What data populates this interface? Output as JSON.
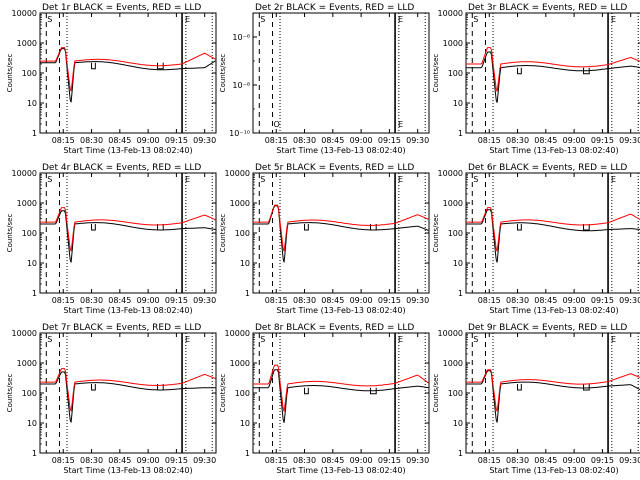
{
  "figure": {
    "common": {
      "xlabel": "Start Time (13-Feb-13 08:02:40)",
      "ylabel": "Counts/sec",
      "x_ticks": [
        "08:15",
        "08:30",
        "08:45",
        "09:00",
        "09:15",
        "09:30"
      ],
      "y_ticks_log": [
        "1",
        "10",
        "100",
        "1000",
        "10000"
      ],
      "y_ticks_tiny": [
        "10⁻¹⁰",
        "10⁻⁸",
        "10⁻⁶"
      ],
      "markers": {
        "s": "S",
        "e": "E",
        "o": "O"
      },
      "colors": {
        "events": "#000000",
        "lld": "#ff0000",
        "axes": "#000000"
      }
    }
  },
  "chart_data": [
    {
      "type": "line",
      "title": "Det 1r BLACK = Events, RED = LLD",
      "x": [
        "08:02:40",
        "08:15",
        "09:18",
        "09:30",
        "09:36"
      ],
      "ylim": [
        1,
        10000
      ],
      "scale": "log",
      "series": [
        {
          "name": "Events",
          "values": [
            220,
            650,
            140,
            150,
            260
          ]
        },
        {
          "name": "LLD",
          "values": [
            250,
            700,
            200,
            460,
            280
          ]
        }
      ]
    },
    {
      "type": "line",
      "title": "Det 2r BLACK = Events, RED = LLD",
      "ylim": [
        1e-10,
        1e-05
      ],
      "scale": "log",
      "series": []
    },
    {
      "type": "line",
      "title": "Det 3r BLACK = Events, RED = LLD",
      "x": [
        "08:02:40",
        "08:15",
        "09:18",
        "09:30",
        "09:36"
      ],
      "ylim": [
        1,
        10000
      ],
      "scale": "log",
      "series": [
        {
          "name": "Events",
          "values": [
            150,
            500,
            140,
            170,
            150
          ]
        },
        {
          "name": "LLD",
          "values": [
            200,
            700,
            190,
            330,
            230
          ]
        }
      ]
    },
    {
      "type": "line",
      "title": "Det 4r BLACK = Events, RED = LLD",
      "x": [
        "08:02:40",
        "08:15",
        "09:18",
        "09:30",
        "09:36"
      ],
      "ylim": [
        1,
        10000
      ],
      "scale": "log",
      "series": [
        {
          "name": "Events",
          "values": [
            200,
            550,
            140,
            150,
            130
          ]
        },
        {
          "name": "LLD",
          "values": [
            230,
            700,
            220,
            400,
            270
          ]
        }
      ]
    },
    {
      "type": "line",
      "title": "Det 5r BLACK = Events, RED = LLD",
      "x": [
        "08:02:40",
        "08:15",
        "09:18",
        "09:30",
        "09:36"
      ],
      "ylim": [
        1,
        10000
      ],
      "scale": "log",
      "series": [
        {
          "name": "Events",
          "values": [
            200,
            800,
            140,
            170,
            120
          ]
        },
        {
          "name": "LLD",
          "values": [
            230,
            850,
            210,
            410,
            280
          ]
        }
      ]
    },
    {
      "type": "line",
      "title": "Det 6r BLACK = Events, RED = LLD",
      "x": [
        "08:02:40",
        "08:15",
        "09:18",
        "09:30",
        "09:36"
      ],
      "ylim": [
        1,
        10000
      ],
      "scale": "log",
      "series": [
        {
          "name": "Events",
          "values": [
            200,
            600,
            130,
            140,
            130
          ]
        },
        {
          "name": "LLD",
          "values": [
            230,
            700,
            220,
            430,
            260
          ]
        }
      ]
    },
    {
      "type": "line",
      "title": "Det 7r BLACK = Events, RED = LLD",
      "x": [
        "08:02:40",
        "08:15",
        "09:18",
        "09:30",
        "09:36"
      ],
      "ylim": [
        1,
        10000
      ],
      "scale": "log",
      "series": [
        {
          "name": "Events",
          "values": [
            200,
            500,
            140,
            150,
            150
          ]
        },
        {
          "name": "LLD",
          "values": [
            230,
            650,
            210,
            420,
            300
          ]
        }
      ]
    },
    {
      "type": "line",
      "title": "Det 8r BLACK = Events, RED = LLD",
      "x": [
        "08:02:40",
        "08:15",
        "09:18",
        "09:30",
        "09:36"
      ],
      "ylim": [
        1,
        10000
      ],
      "scale": "log",
      "series": [
        {
          "name": "Events",
          "values": [
            150,
            600,
            140,
            170,
            150
          ]
        },
        {
          "name": "LLD",
          "values": [
            200,
            850,
            210,
            400,
            210
          ]
        }
      ]
    },
    {
      "type": "line",
      "title": "Det 9r BLACK = Events, RED = LLD",
      "x": [
        "08:02:40",
        "08:15",
        "09:18",
        "09:30",
        "09:36"
      ],
      "ylim": [
        1,
        10000
      ],
      "scale": "log",
      "series": [
        {
          "name": "Events",
          "values": [
            200,
            550,
            170,
            190,
            120
          ]
        },
        {
          "name": "LLD",
          "values": [
            230,
            600,
            240,
            440,
            310
          ]
        }
      ]
    }
  ]
}
